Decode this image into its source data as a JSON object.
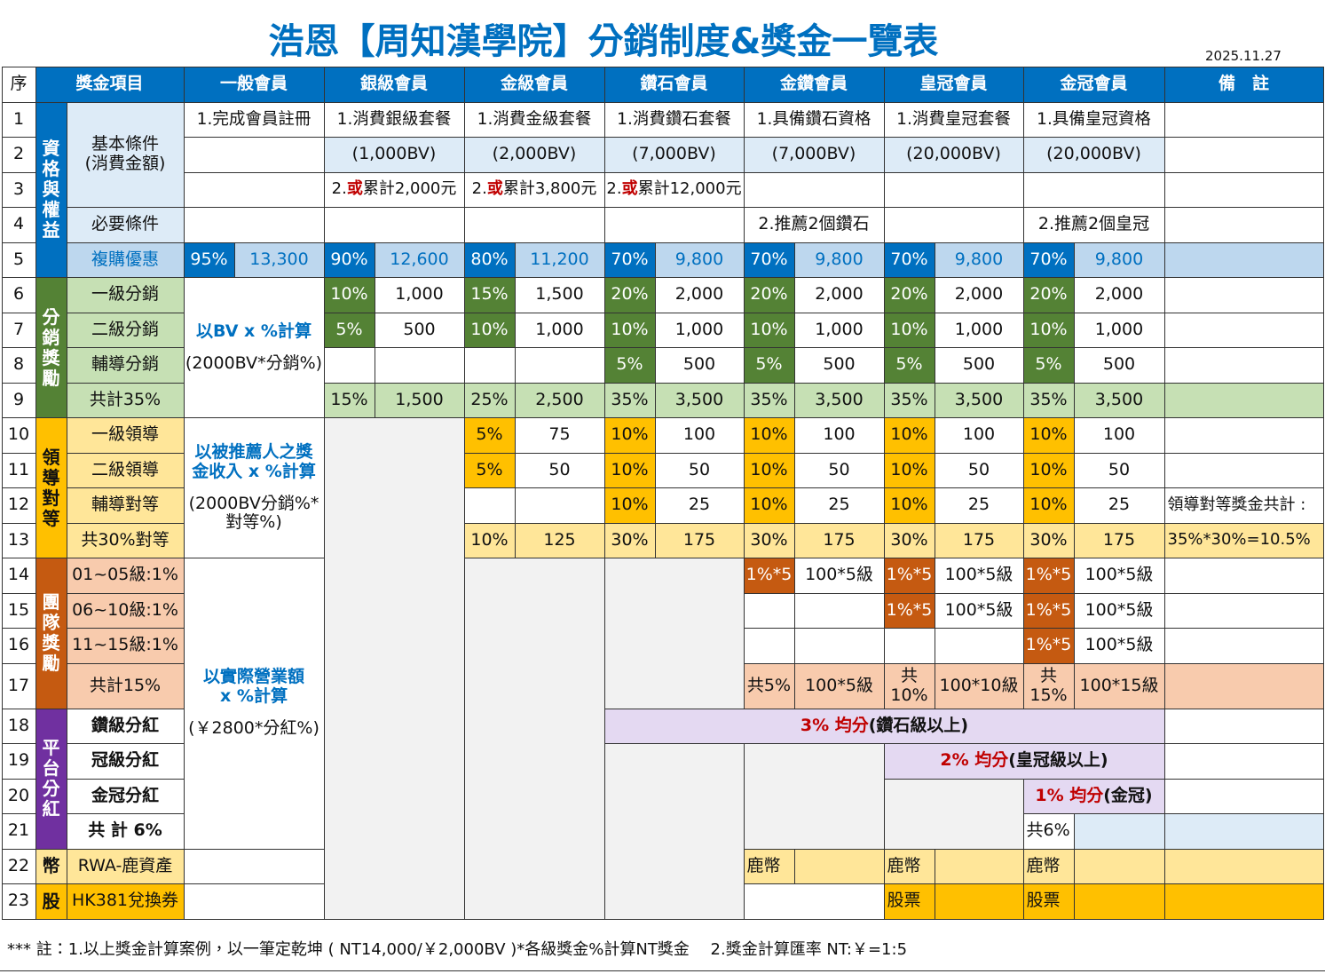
{
  "header": {
    "title": "浩恩【周知漢學院】分銷制度&獎金一覽表",
    "date": "2025.11.27"
  },
  "table": {
    "columns": [
      "序",
      "獎金項目",
      "一般會員",
      "銀級會員",
      "金級會員",
      "鑽石會員",
      "金鑽會員",
      "皇冠會員",
      "金冠會員",
      "備　註"
    ],
    "groups": [
      "資格與權益",
      "分銷獎勵",
      "領導對等",
      "團隊獎勵",
      "平台分紅",
      "幣",
      "股"
    ],
    "rows": [
      [
        "1",
        "基本條件\n(消費金額)",
        "1.完成會員註冊",
        "1.消費銀級套餐",
        "1.消費金級套餐",
        "1.消費鑽石套餐",
        "1.具備鑽石資格",
        "1.消費皇冠套餐",
        "1.具備皇冠資格"
      ],
      [
        "2",
        "(1,000BV)",
        "(2,000BV)",
        "(7,000BV)",
        "(7,000BV)",
        "(20,000BV)",
        "(20,000BV)"
      ],
      [
        "3",
        [
          "2.",
          "或",
          "累計2,000元"
        ],
        [
          "2.",
          "或",
          "累計3,800元"
        ],
        [
          "2.",
          "或",
          "累計12,000元"
        ]
      ],
      [
        "4",
        "必要條件",
        "2.推薦2個鑽石",
        "2.推薦2個皇冠"
      ],
      [
        "5",
        "複購優惠",
        "95%",
        "13,300",
        "90%",
        "12,600",
        "80%",
        "11,200",
        "70%",
        "9,800",
        "70%",
        "9,800",
        "70%",
        "9,800",
        "70%",
        "9,800"
      ],
      [
        "6",
        "一級分銷",
        [
          "以BV x %計算",
          "(2000BV*分銷%)"
        ],
        "10%",
        "1,000",
        "15%",
        "1,500",
        "20%",
        "2,000",
        "20%",
        "2,000",
        "20%",
        "2,000",
        "20%",
        "2,000"
      ],
      [
        "7",
        "二級分銷",
        "5%",
        "500",
        "10%",
        "1,000",
        "10%",
        "1,000",
        "10%",
        "1,000",
        "10%",
        "1,000",
        "10%",
        "1,000"
      ],
      [
        "8",
        "輔導分銷",
        "5%",
        "500",
        "5%",
        "500",
        "5%",
        "500",
        "5%",
        "500"
      ],
      [
        "9",
        "共計35%",
        "15%",
        "1,500",
        "25%",
        "2,500",
        "35%",
        "3,500",
        "35%",
        "3,500",
        "35%",
        "3,500",
        "35%",
        "3,500"
      ],
      [
        "10",
        "一級領導",
        [
          "以被推薦人之獎\n金收入 x %計算",
          "(2000BV分銷%*\n對等%)"
        ],
        "5%",
        "75",
        "10%",
        "100",
        "10%",
        "100",
        "10%",
        "100",
        "10%",
        "100"
      ],
      [
        "11",
        "二級領導",
        "5%",
        "50",
        "10%",
        "50",
        "10%",
        "50",
        "10%",
        "50",
        "10%",
        "50"
      ],
      [
        "12",
        "輔導對等",
        "10%",
        "25",
        "10%",
        "25",
        "10%",
        "25",
        "10%",
        "25",
        "領導對等獎金共計 :"
      ],
      [
        "13",
        "共30%對等",
        "10%",
        "125",
        "30%",
        "175",
        "30%",
        "175",
        "30%",
        "175",
        "30%",
        "175",
        "35%*30%=10.5%"
      ],
      [
        "14",
        "01~05級:1%",
        [
          "以實際營業額\nx %計算",
          "(￥2800*分紅%)"
        ],
        "1%*5",
        "100*5級",
        "1%*5",
        "100*5級",
        "1%*5",
        "100*5級"
      ],
      [
        "15",
        "06~10級:1%",
        "1%*5",
        "100*5級",
        "1%*5",
        "100*5級"
      ],
      [
        "16",
        "11~15級:1%",
        "1%*5",
        "100*5級"
      ],
      [
        "17",
        "共計15%",
        "共5%",
        "100*5級",
        "共\n10%",
        "100*10級",
        "共\n15%",
        "100*15級"
      ],
      [
        "18",
        "鑽級分紅",
        [
          "3% 均分",
          " (鑽石級以上)"
        ]
      ],
      [
        "19",
        "冠級分紅",
        [
          "2% 均分",
          " (皇冠級以上)"
        ]
      ],
      [
        "20",
        "金冠分紅",
        [
          "1% 均分",
          " (金冠)"
        ]
      ],
      [
        "21",
        "共 計 6%",
        "共6%"
      ],
      [
        "22",
        "RWA-鹿資產",
        "鹿幣",
        "鹿幣",
        "鹿幣"
      ],
      [
        "23",
        "HK381兌換券",
        "股票",
        "股票"
      ]
    ]
  },
  "footnote": "*** 註：1.以上獎金計算案例，以一筆定乾坤 ( NT14,000/￥2,000BV )*各級獎金%計算NT獎金　 2.獎金計算匯率 NT:￥=1:5"
}
